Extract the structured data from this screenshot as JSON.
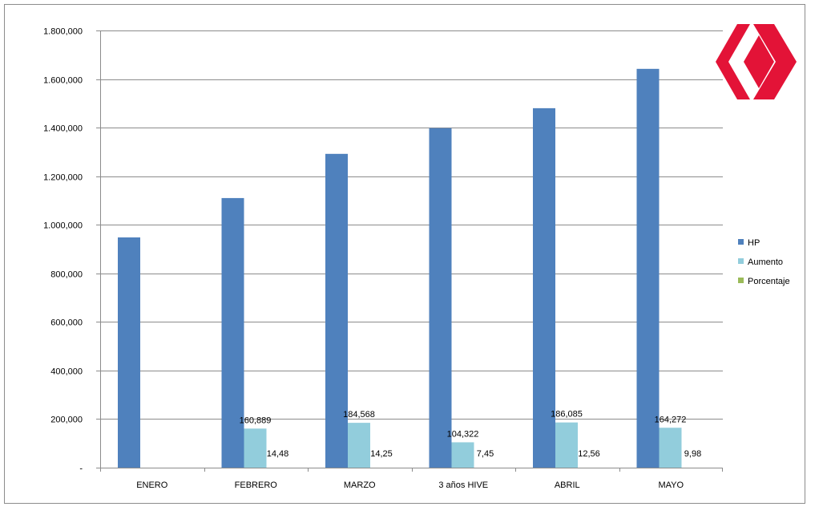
{
  "chart_data": {
    "type": "bar",
    "categories": [
      "ENERO",
      "FEBRERO",
      "MARZO",
      "3 años HIVE",
      "ABRIL",
      "MAYO"
    ],
    "series": [
      {
        "name": "HP",
        "color": "#4F81BD",
        "values": [
          948000,
          1110000,
          1292000,
          1398000,
          1480000,
          1642000
        ],
        "labels": [
          "",
          "",
          "",
          "",
          "",
          ""
        ]
      },
      {
        "name": "Aumento",
        "color": "#92CDDC",
        "values": [
          0,
          160889,
          184568,
          104322,
          186085,
          164272
        ],
        "labels": [
          "",
          "160,889",
          "184,568",
          "104,322",
          "186,085",
          "164,272"
        ]
      },
      {
        "name": "Porcentaje",
        "color": "#9BBB59",
        "values": [
          0,
          14.48,
          14.25,
          7.45,
          12.56,
          9.98
        ],
        "labels": [
          "",
          "14,48",
          "14,25",
          "7,45",
          "12,56",
          "9,98"
        ]
      }
    ],
    "ylim": [
      0,
      1800000
    ],
    "yticks": [
      0,
      200000,
      400000,
      600000,
      800000,
      1000000,
      1200000,
      1400000,
      1600000,
      1800000
    ],
    "ytick_labels": [
      "-",
      "200,000",
      "400,000",
      "600,000",
      "800,000",
      "1.000,000",
      "1.200,000",
      "1.400,000",
      "1.600,000",
      "1.800,000"
    ],
    "grid": true,
    "legend_position": "right",
    "title": "",
    "xlabel": "",
    "ylabel": ""
  },
  "logo": {
    "name": "hive-logo",
    "color": "#E31337"
  }
}
